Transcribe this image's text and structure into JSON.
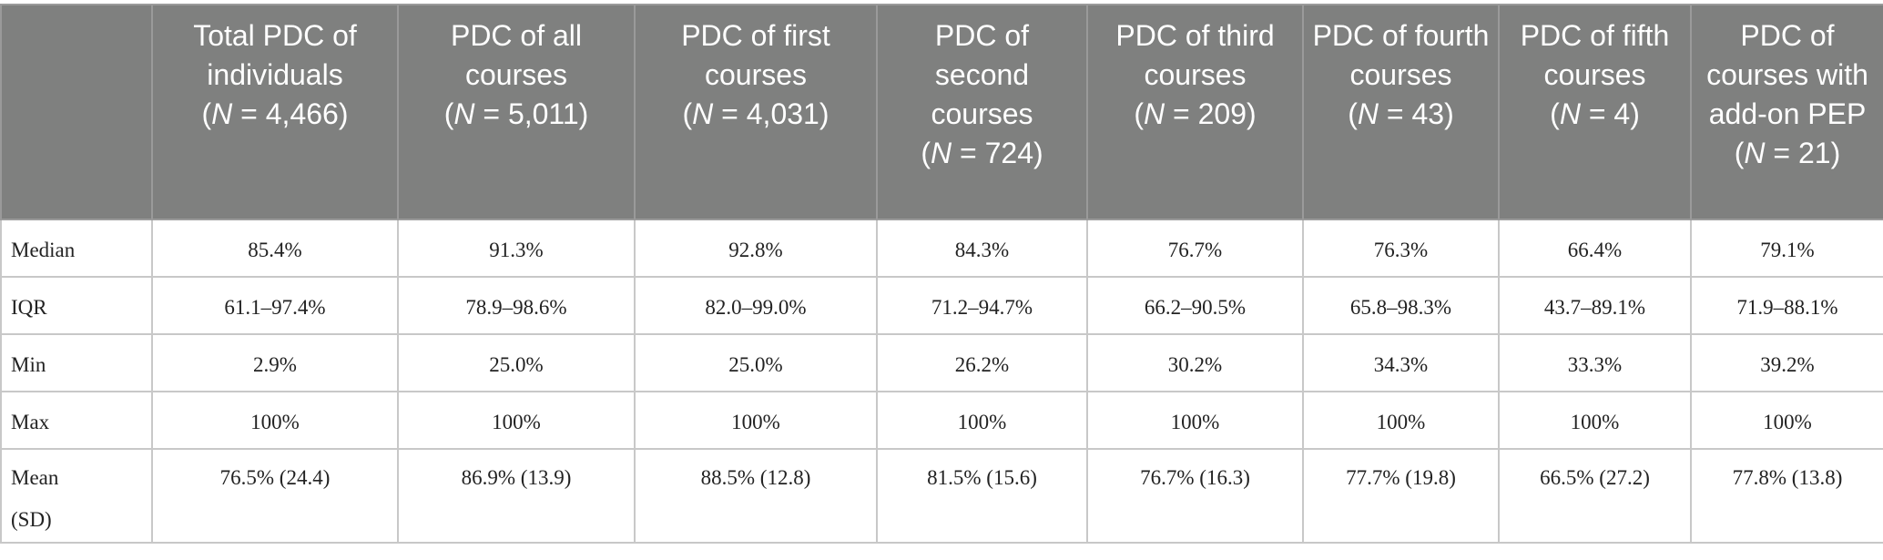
{
  "table": {
    "columns": [
      {
        "title": "",
        "n": ""
      },
      {
        "title": "Total PDC of individuals",
        "n": "4,466"
      },
      {
        "title": "PDC of all courses",
        "n": "5,011"
      },
      {
        "title": "PDC of first courses",
        "n": "4,031"
      },
      {
        "title": "PDC of second courses",
        "n": "724"
      },
      {
        "title": "PDC of third courses",
        "n": "209"
      },
      {
        "title": "PDC of fourth courses",
        "n": "43"
      },
      {
        "title": "PDC of fifth courses",
        "n": "4"
      },
      {
        "title": "PDC of courses with add-on PEP",
        "n": "21"
      }
    ],
    "rows": [
      {
        "label": "Median",
        "values": [
          "85.4%",
          "91.3%",
          "92.8%",
          "84.3%",
          "76.7%",
          "76.3%",
          "66.4%",
          "79.1%"
        ]
      },
      {
        "label": "IQR",
        "values": [
          "61.1–97.4%",
          "78.9–98.6%",
          "82.0–99.0%",
          "71.2–94.7%",
          "66.2–90.5%",
          "65.8–98.3%",
          "43.7–89.1%",
          "71.9–88.1%"
        ]
      },
      {
        "label": "Min",
        "values": [
          "2.9%",
          "25.0%",
          "25.0%",
          "26.2%",
          "30.2%",
          "34.3%",
          "33.3%",
          "39.2%"
        ]
      },
      {
        "label": "Max",
        "values": [
          "100%",
          "100%",
          "100%",
          "100%",
          "100%",
          "100%",
          "100%",
          "100%"
        ]
      },
      {
        "label": "Mean (SD)",
        "values": [
          "76.5% (24.4)",
          "86.9% (13.9)",
          "88.5% (12.8)",
          "81.5% (15.6)",
          "76.7% (16.3)",
          "77.7% (19.8)",
          "66.5% (27.2)",
          "77.8% (13.8)"
        ]
      }
    ]
  }
}
